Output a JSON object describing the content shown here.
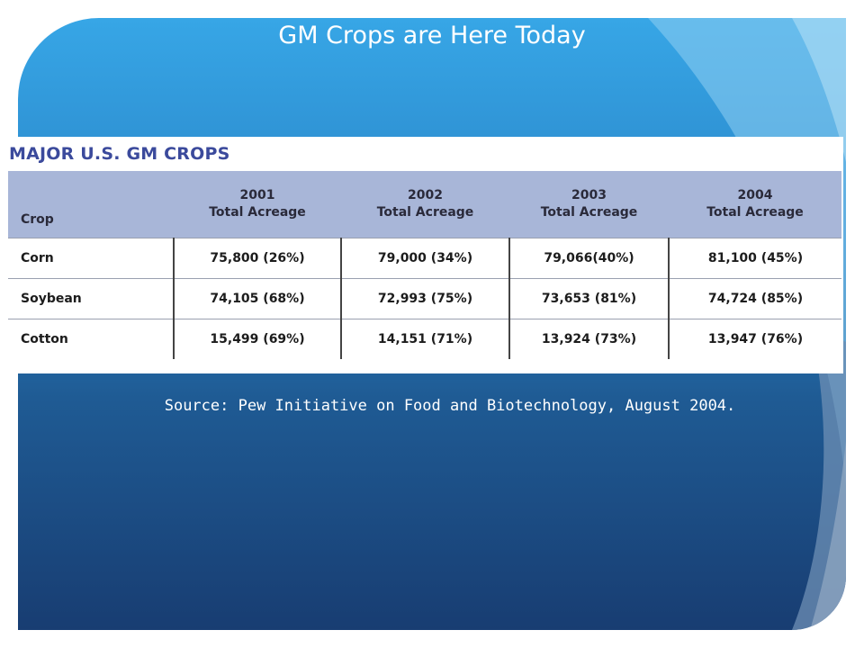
{
  "slide": {
    "title": "GM Crops are Here Today",
    "source": "Source: Pew Initiative on Food and Biotechnology, August 2004."
  },
  "chart_data": {
    "type": "table",
    "title": "MAJOR U.S. GM CROPS",
    "columns": [
      {
        "header": "Crop"
      },
      {
        "header": "2001",
        "subheader": "Total Acreage"
      },
      {
        "header": "2002",
        "subheader": "Total Acreage"
      },
      {
        "header": "2003",
        "subheader": "Total Acreage"
      },
      {
        "header": "2004",
        "subheader": "Total Acreage"
      }
    ],
    "rows": [
      {
        "crop": "Corn",
        "values": [
          "75,800 (26%)",
          "79,000 (34%)",
          "79,066(40%)",
          "81,100 (45%)"
        ]
      },
      {
        "crop": "Soybean",
        "values": [
          "74,105 (68%)",
          "72,993 (75%)",
          "73,653 (81%)",
          "74,724 (85%)"
        ]
      },
      {
        "crop": "Cotton",
        "values": [
          "15,499 (69%)",
          "14,151 (71%)",
          "13,924 (73%)",
          "13,947 (76%)"
        ]
      }
    ]
  },
  "colors": {
    "header_band": "#a8b6d8",
    "heading_text": "#3b4a9c",
    "slide_top": "#37a6e6",
    "slide_bottom": "#183d72"
  }
}
